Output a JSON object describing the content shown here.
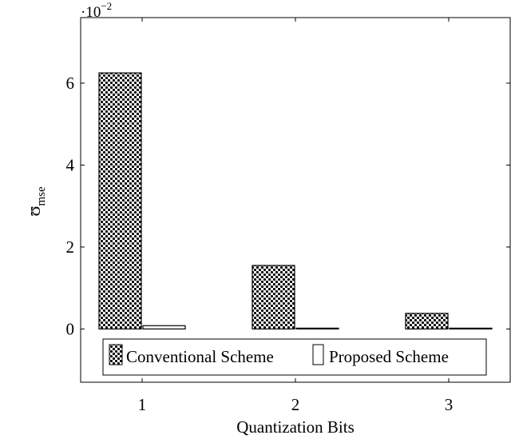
{
  "chart_data": {
    "type": "bar",
    "categories": [
      "1",
      "2",
      "3"
    ],
    "x_ticks": [
      "1",
      "2",
      "3"
    ],
    "y_ticks": [
      "0",
      "2",
      "4",
      "6"
    ],
    "y_tick_values": [
      0,
      2,
      4,
      6
    ],
    "y_multiplier_label": "·10",
    "y_multiplier_exponent": "−2",
    "ylim": [
      -1.3,
      7.6
    ],
    "xlabel": "Quantization Bits",
    "ylabel_symbol": "ʊ",
    "ylabel_subscript": "mse",
    "grid": false,
    "legend_position": "bottom-inside",
    "series": [
      {
        "name": "Conventional Scheme",
        "values": [
          6.25,
          1.55,
          0.38
        ],
        "pattern": "dotted-checker"
      },
      {
        "name": "Proposed Scheme",
        "values": [
          0.08,
          0.02,
          0.01
        ],
        "pattern": "white"
      }
    ]
  }
}
